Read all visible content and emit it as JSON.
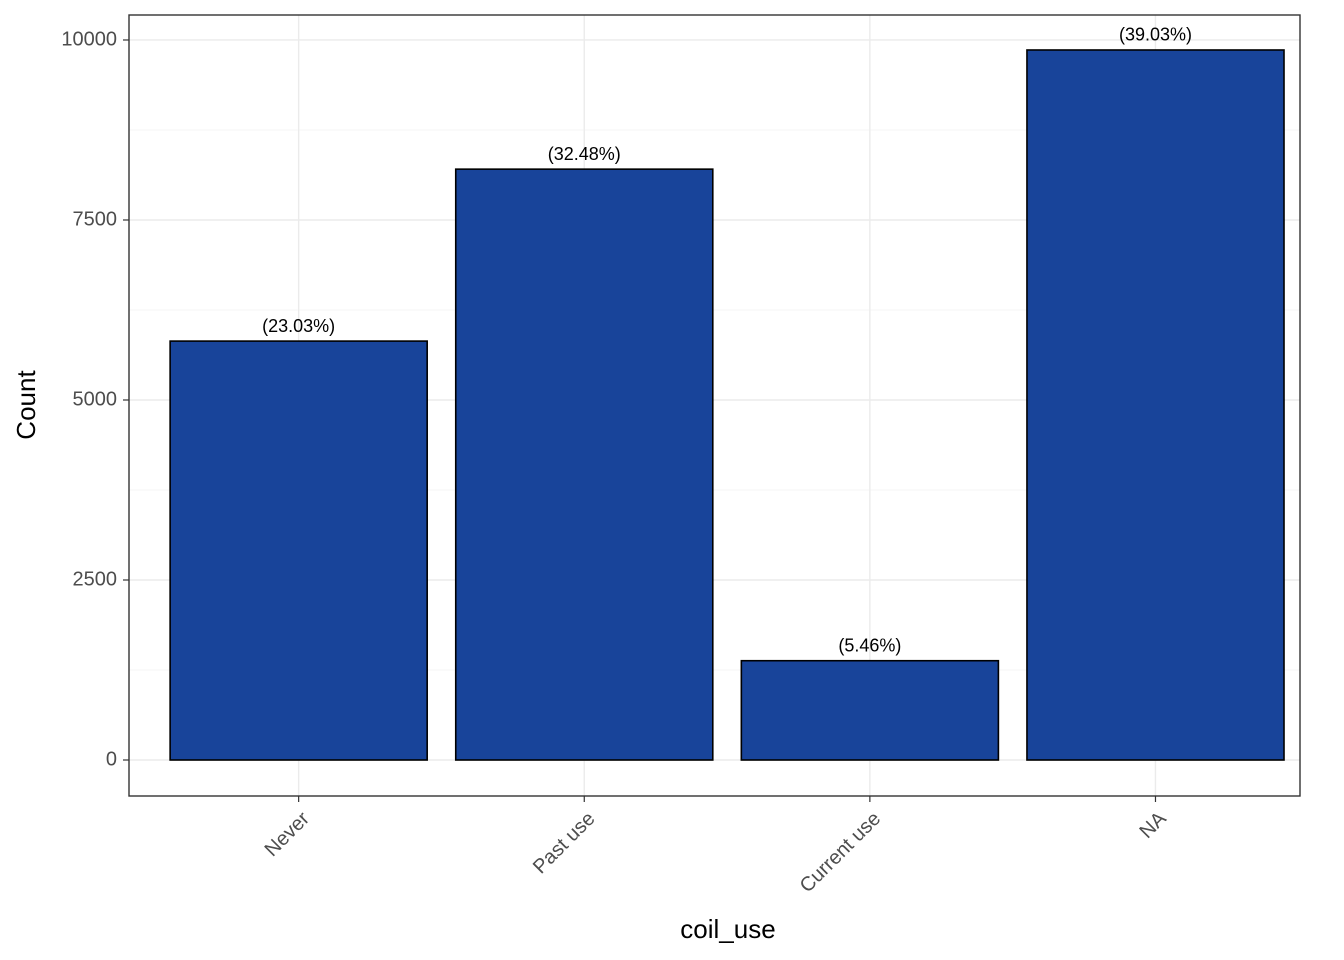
{
  "chart_data": {
    "type": "bar",
    "x_label": "coil_use",
    "y_label": "Count",
    "categories": [
      "Never",
      "Past use",
      "Current use",
      "NA"
    ],
    "values": [
      5818,
      8206,
      1379,
      9861
    ],
    "bar_labels": [
      "(23.03%)",
      "(32.48%)",
      "(5.46%)",
      "(39.03%)"
    ],
    "color": "#18449a",
    "ylim": [
      -500,
      10347
    ],
    "yticks": [
      0,
      2500,
      5000,
      7500,
      10000
    ],
    "grid": true
  }
}
